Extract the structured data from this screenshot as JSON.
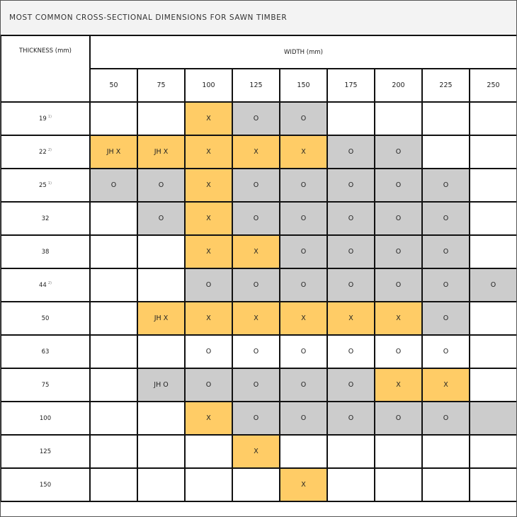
{
  "title": "MOST COMMON CROSS-SECTIONAL DIMENSIONS FOR SAWN TIMBER",
  "thickness_header": "THICKNESS (mm)",
  "width_header": "WIDTH (mm)",
  "widths": [
    "50",
    "75",
    "100",
    "125",
    "150",
    "175",
    "200",
    "225",
    "250"
  ],
  "colors": {
    "x": "#ffcc66",
    "o": "#cccccc",
    "w": "#ffffff"
  },
  "rows": [
    {
      "t": "19",
      "note": "1)",
      "cells": [
        [
          "",
          "w"
        ],
        [
          "",
          "w"
        ],
        [
          "X",
          "x"
        ],
        [
          "O",
          "o"
        ],
        [
          "O",
          "o"
        ],
        [
          "",
          "w"
        ],
        [
          "",
          "w"
        ],
        [
          "",
          "w"
        ],
        [
          "",
          "w"
        ]
      ]
    },
    {
      "t": "22",
      "note": "2)",
      "cells": [
        [
          "JH X",
          "x"
        ],
        [
          "JH X",
          "x"
        ],
        [
          "X",
          "x"
        ],
        [
          "X",
          "x"
        ],
        [
          "X",
          "x"
        ],
        [
          "O",
          "o"
        ],
        [
          "O",
          "o"
        ],
        [
          "",
          "w"
        ],
        [
          "",
          "w"
        ]
      ]
    },
    {
      "t": "25",
      "note": "1)",
      "cells": [
        [
          "O",
          "o"
        ],
        [
          "O",
          "o"
        ],
        [
          "X",
          "x"
        ],
        [
          "O",
          "o"
        ],
        [
          "O",
          "o"
        ],
        [
          "O",
          "o"
        ],
        [
          "O",
          "o"
        ],
        [
          "O",
          "o"
        ],
        [
          "",
          "w"
        ]
      ]
    },
    {
      "t": "32",
      "note": "",
      "cells": [
        [
          "",
          "w"
        ],
        [
          "O",
          "o"
        ],
        [
          "X",
          "x"
        ],
        [
          "O",
          "o"
        ],
        [
          "O",
          "o"
        ],
        [
          "O",
          "o"
        ],
        [
          "O",
          "o"
        ],
        [
          "O",
          "o"
        ],
        [
          "",
          "w"
        ]
      ]
    },
    {
      "t": "38",
      "note": "",
      "cells": [
        [
          "",
          "w"
        ],
        [
          "",
          "w"
        ],
        [
          "X",
          "x"
        ],
        [
          "X",
          "x"
        ],
        [
          "O",
          "o"
        ],
        [
          "O",
          "o"
        ],
        [
          "O",
          "o"
        ],
        [
          "O",
          "o"
        ],
        [
          "",
          "w"
        ]
      ]
    },
    {
      "t": "44",
      "note": "2)",
      "cells": [
        [
          "",
          "w"
        ],
        [
          "",
          "w"
        ],
        [
          "O",
          "o"
        ],
        [
          "O",
          "o"
        ],
        [
          "O",
          "o"
        ],
        [
          "O",
          "o"
        ],
        [
          "O",
          "o"
        ],
        [
          "O",
          "o"
        ],
        [
          "O",
          "o"
        ]
      ]
    },
    {
      "t": "50",
      "note": "",
      "cells": [
        [
          "",
          "w"
        ],
        [
          "JH X",
          "x"
        ],
        [
          "X",
          "x"
        ],
        [
          "X",
          "x"
        ],
        [
          "X",
          "x"
        ],
        [
          "X",
          "x"
        ],
        [
          "X",
          "x"
        ],
        [
          "O",
          "o"
        ],
        [
          "",
          "w"
        ]
      ]
    },
    {
      "t": "63",
      "note": "",
      "cells": [
        [
          "",
          "w"
        ],
        [
          "",
          "w"
        ],
        [
          "O",
          "w"
        ],
        [
          "O",
          "w"
        ],
        [
          "O",
          "w"
        ],
        [
          "O",
          "w"
        ],
        [
          "O",
          "w"
        ],
        [
          "O",
          "w"
        ],
        [
          "",
          "w"
        ]
      ]
    },
    {
      "t": "75",
      "note": "",
      "cells": [
        [
          "",
          "w"
        ],
        [
          "JH O",
          "o"
        ],
        [
          "O",
          "o"
        ],
        [
          "O",
          "o"
        ],
        [
          "O",
          "o"
        ],
        [
          "O",
          "o"
        ],
        [
          "X",
          "x"
        ],
        [
          "X",
          "x"
        ],
        [
          "",
          "w"
        ]
      ]
    },
    {
      "t": "100",
      "note": "",
      "cells": [
        [
          "",
          "w"
        ],
        [
          "",
          "w"
        ],
        [
          "X",
          "x"
        ],
        [
          "O",
          "o"
        ],
        [
          "O",
          "o"
        ],
        [
          "O",
          "o"
        ],
        [
          "O",
          "o"
        ],
        [
          "O",
          "o"
        ],
        [
          "",
          "o"
        ]
      ]
    },
    {
      "t": "125",
      "note": "",
      "cells": [
        [
          "",
          "w"
        ],
        [
          "",
          "w"
        ],
        [
          "",
          "w"
        ],
        [
          "X",
          "x"
        ],
        [
          "",
          "w"
        ],
        [
          "",
          "w"
        ],
        [
          "",
          "w"
        ],
        [
          "",
          "w"
        ],
        [
          "",
          "w"
        ]
      ]
    },
    {
      "t": "150",
      "note": "",
      "cells": [
        [
          "",
          "w"
        ],
        [
          "",
          "w"
        ],
        [
          "",
          "w"
        ],
        [
          "",
          "w"
        ],
        [
          "X",
          "x"
        ],
        [
          "",
          "w"
        ],
        [
          "",
          "w"
        ],
        [
          "",
          "w"
        ],
        [
          "",
          "w"
        ]
      ]
    }
  ]
}
